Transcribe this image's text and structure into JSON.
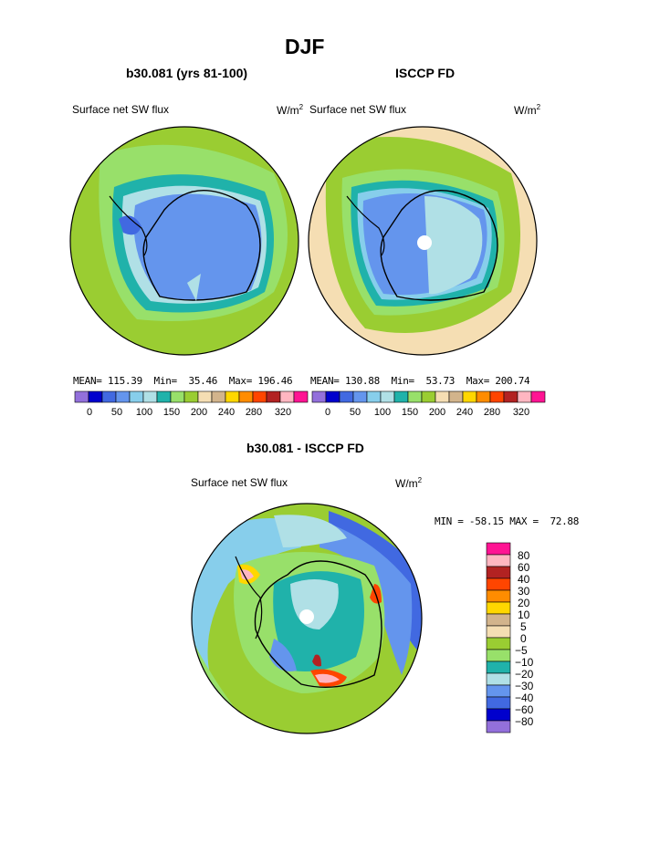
{
  "chart_data": {
    "type": "heatmap",
    "title": "DJF",
    "panels": [
      {
        "subtitle": "b30.081 (yrs 81-100)",
        "left_label": "Surface net SW flux",
        "unit_base": "W/m",
        "unit_exp": "2",
        "stats": {
          "mean_label": "MEAN=",
          "mean": "115.39",
          "min_label": "Min=",
          "min": "35.46",
          "max_label": "Max=",
          "max": "196.46"
        },
        "colorbar_levels": [
          "0",
          "50",
          "100",
          "150",
          "200",
          "240",
          "280",
          "320"
        ],
        "colorbar_colors": [
          "#9370db",
          "#0000cd",
          "#4169e1",
          "#6495ed",
          "#87ceeb",
          "#b0e0e6",
          "#20b2aa",
          "#98e06a",
          "#9acd32",
          "#f5deb3",
          "#d2b48c",
          "#ffd700",
          "#ff8c00",
          "#ff4500",
          "#b22222",
          "#ffb6c1",
          "#ff1493"
        ]
      },
      {
        "subtitle": "ISCCP FD",
        "left_label": "Surface net SW flux",
        "unit_base": "W/m",
        "unit_exp": "2",
        "stats": {
          "mean_label": "MEAN=",
          "mean": "130.88",
          "min_label": "Min=",
          "min": "53.73",
          "max_label": "Max=",
          "max": "200.74"
        },
        "colorbar_levels": [
          "0",
          "50",
          "100",
          "150",
          "200",
          "240",
          "280",
          "320"
        ]
      },
      {
        "subtitle": "b30.081 - ISCCP FD",
        "left_label": "Surface net SW flux",
        "unit_base": "W/m",
        "unit_exp": "2",
        "minmax_label": "MIN = -58.15 MAX =  72.88",
        "colorbar_levels": [
          "80",
          "60",
          "40",
          "30",
          "20",
          "10",
          "5",
          "0",
          "−5",
          "−10",
          "−20",
          "−30",
          "−40",
          "−60",
          "−80"
        ],
        "colorbar_colors": [
          "#ff1493",
          "#ffb6c1",
          "#b22222",
          "#ff4500",
          "#ff8c00",
          "#ffd700",
          "#d2b48c",
          "#f5deb3",
          "#9acd32",
          "#98e06a",
          "#20b2aa",
          "#b0e0e6",
          "#6495ed",
          "#4169e1",
          "#0000cd",
          "#9370db"
        ]
      }
    ]
  }
}
